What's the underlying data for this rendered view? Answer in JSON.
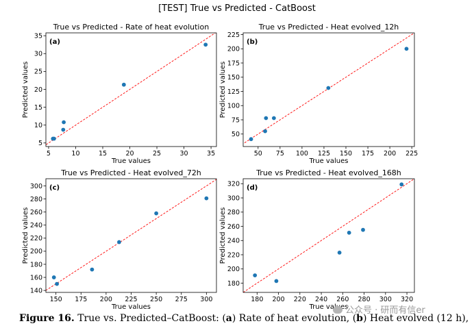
{
  "figure": {
    "suptitle": "[TEST] True vs Predicted - CatBoost",
    "caption": {
      "label": "Figure 16.",
      "parts": [
        {
          "text": " True vs. Predicted–CatBoost: (",
          "bold": false
        },
        {
          "text": "a",
          "bold": true
        },
        {
          "text": ") Rate of heat evolution, (",
          "bold": false
        },
        {
          "text": "b",
          "bold": true
        },
        {
          "text": ") Heat evolved (12 h), (",
          "bold": false
        },
        {
          "text": "c",
          "bold": true
        },
        {
          "text": ") Heat",
          "bold": false
        }
      ]
    },
    "watermark": "公众号 · 研而有信er"
  },
  "colors": {
    "points": "#1f77b4",
    "identity_line": "#ff0000"
  },
  "chart_data": [
    {
      "type": "scatter",
      "panel": "(a)",
      "title": "True vs Predicted - Rate of heat evolution",
      "xlabel": "True values",
      "ylabel": "Predicted values",
      "xlim": [
        4.5,
        36.0
      ],
      "ylim": [
        4.0,
        35.8
      ],
      "xticks": [
        5,
        10,
        15,
        20,
        25,
        30,
        35
      ],
      "yticks": [
        5,
        10,
        15,
        20,
        25,
        30,
        35
      ],
      "identity_line": true,
      "x": [
        5.8,
        6.0,
        7.7,
        7.8,
        18.9,
        34.0
      ],
      "y": [
        6.2,
        6.2,
        8.7,
        10.8,
        21.3,
        32.5
      ]
    },
    {
      "type": "scatter",
      "panel": "(b)",
      "title": "True vs Predicted - Heat evolved_12h",
      "xlabel": "True values",
      "ylabel": "Predicted values",
      "xlim": [
        33,
        228
      ],
      "ylim": [
        28,
        228
      ],
      "xticks": [
        50,
        75,
        100,
        125,
        150,
        175,
        200,
        225
      ],
      "yticks": [
        50,
        75,
        100,
        125,
        150,
        175,
        200,
        225
      ],
      "identity_line": true,
      "x": [
        42,
        58,
        59,
        68,
        130,
        219
      ],
      "y": [
        41,
        55,
        78,
        78,
        131,
        200
      ]
    },
    {
      "type": "scatter",
      "panel": "(c)",
      "title": "True vs Predicted - Heat evolved_72h",
      "xlabel": "True values",
      "ylabel": "Predicted values",
      "xlim": [
        140,
        310
      ],
      "ylim": [
        137,
        311
      ],
      "xticks": [
        150,
        175,
        200,
        225,
        250,
        275,
        300
      ],
      "yticks": [
        140,
        160,
        180,
        200,
        220,
        240,
        260,
        280,
        300
      ],
      "identity_line": true,
      "x": [
        148,
        151,
        186,
        213,
        250,
        300
      ],
      "y": [
        160,
        150,
        172,
        214,
        258,
        281
      ]
    },
    {
      "type": "scatter",
      "panel": "(d)",
      "title": "True vs Predicted - Heat evolved_168h",
      "xlabel": "True values",
      "ylabel": "Predicted values",
      "xlim": [
        167,
        327
      ],
      "ylim": [
        167,
        327
      ],
      "xticks": [
        180,
        200,
        220,
        240,
        260,
        280,
        300,
        320
      ],
      "yticks": [
        180,
        200,
        220,
        240,
        260,
        280,
        300,
        320
      ],
      "identity_line": true,
      "x": [
        178,
        198,
        257,
        266,
        279,
        315
      ],
      "y": [
        191,
        183,
        223,
        251,
        255,
        319
      ]
    }
  ]
}
